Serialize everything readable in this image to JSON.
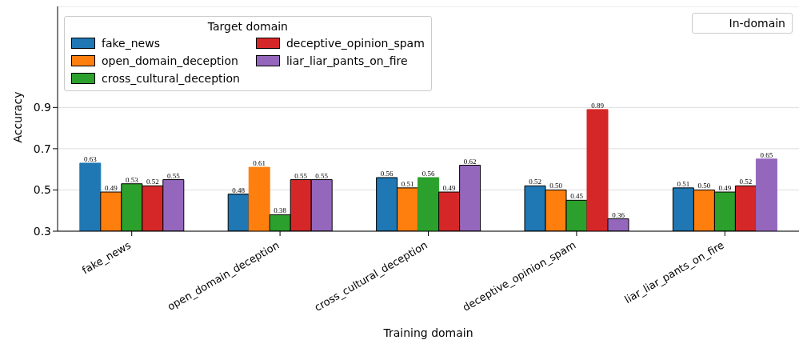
{
  "chart_data": {
    "type": "bar",
    "xlabel": "Training domain",
    "ylabel": "Accuracy",
    "legend_title": "Target domain",
    "categories": [
      "fake_news",
      "open_domain_deception",
      "cross_cultural_deception",
      "deceptive_opinion_spam",
      "liar_liar_pants_on_fire"
    ],
    "series": [
      {
        "name": "fake_news",
        "color": "#1f77b4",
        "values": [
          0.63,
          0.48,
          0.56,
          0.52,
          0.51
        ],
        "value_labels": [
          "0.63",
          "0.48",
          "0.56",
          "0.52",
          "0.51"
        ]
      },
      {
        "name": "open_domain_deception",
        "color": "#ff7f0e",
        "values": [
          0.49,
          0.61,
          0.51,
          0.5,
          0.5
        ],
        "value_labels": [
          "0.49",
          "0.61",
          "0.51",
          "0.50",
          "0.50"
        ]
      },
      {
        "name": "cross_cultural_deception",
        "color": "#2ca02c",
        "values": [
          0.53,
          0.38,
          0.56,
          0.45,
          0.49
        ],
        "value_labels": [
          "0.53",
          "0.38",
          "0.56",
          "0.45",
          "0.49"
        ]
      },
      {
        "name": "deceptive_opinion_spam",
        "color": "#d62728",
        "values": [
          0.52,
          0.55,
          0.49,
          0.89,
          0.52
        ],
        "value_labels": [
          "0.52",
          "0.55",
          "0.49",
          "0.89",
          "0.52"
        ]
      },
      {
        "name": "liar_liar_pants_on_fire",
        "color": "#9467bd",
        "values": [
          0.55,
          0.55,
          0.62,
          0.36,
          0.65
        ],
        "value_labels": [
          "0.55",
          "0.55",
          "0.62",
          "0.36",
          "0.65"
        ]
      }
    ],
    "annotations": [
      "In-domain"
    ],
    "ylim": [
      0.3,
      1.39
    ],
    "yticks": [
      0.3,
      0.5,
      0.7,
      0.9
    ],
    "grid": "y",
    "legend": "top left"
  }
}
